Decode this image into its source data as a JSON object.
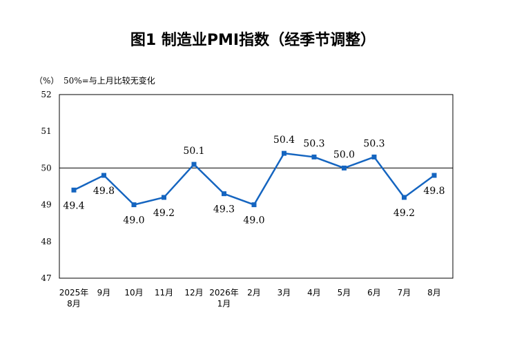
{
  "title": "图1  制造业PMI指数（经季节调整）",
  "unit_label": "（%）",
  "unit_note": "50%=与上月比较无变化",
  "colors": {
    "series": "#1565c0",
    "axis": "#000000"
  },
  "chart_data": {
    "type": "line",
    "title": "图1  制造业PMI指数（经季节调整）",
    "ylabel": "（%）",
    "ylim": [
      47,
      52
    ],
    "yticks": [
      "47",
      "48",
      "49",
      "50",
      "51",
      "52"
    ],
    "reference_line": 50,
    "grid": false,
    "categories": [
      [
        "2025年",
        "8月"
      ],
      [
        "9月"
      ],
      [
        "10月"
      ],
      [
        "11月"
      ],
      [
        "12月"
      ],
      [
        "2026年",
        "1月"
      ],
      [
        "2月"
      ],
      [
        "3月"
      ],
      [
        "4月"
      ],
      [
        "5月"
      ],
      [
        "6月"
      ],
      [
        "7月"
      ],
      [
        "8月"
      ]
    ],
    "series": [
      {
        "values": [
          49.4,
          49.8,
          49.0,
          49.2,
          50.1,
          49.3,
          49.0,
          50.4,
          50.3,
          50.0,
          50.3,
          49.2,
          49.8
        ],
        "labels": [
          "49.4",
          "49.8",
          "49.0",
          "49.2",
          "50.1",
          "49.3",
          "49.0",
          "50.4",
          "50.3",
          "50.0",
          "50.3",
          "49.2",
          "49.8"
        ],
        "marker": "square"
      }
    ]
  }
}
